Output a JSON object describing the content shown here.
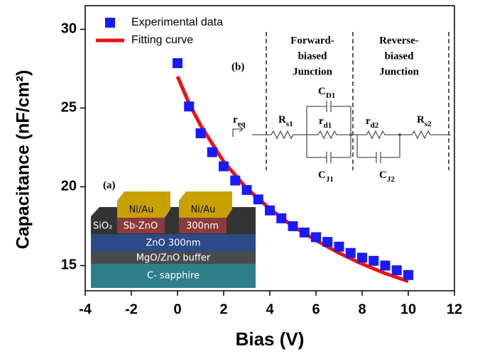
{
  "chart_data": {
    "type": "scatter",
    "x_label": "Bias (V)",
    "y_label": "Capacitance (nF/cm²)",
    "xlim": [
      -4,
      12
    ],
    "ylim": [
      13.4,
      31.5
    ],
    "xticks": [
      -4,
      -2,
      0,
      2,
      4,
      6,
      8,
      10,
      12
    ],
    "yticks": [
      15,
      20,
      25,
      30
    ],
    "legend": "top-left",
    "series": [
      {
        "name": "Experimental data",
        "kind": "marker",
        "color": "#1a1aff",
        "x": [
          0,
          0.5,
          1,
          1.5,
          2,
          2.5,
          3,
          3.5,
          4,
          4.5,
          5,
          5.5,
          6,
          6.5,
          7,
          7.5,
          8,
          8.5,
          9,
          9.5,
          10
        ],
        "values": [
          27.85,
          25.1,
          23.4,
          22.2,
          21.3,
          20.4,
          19.8,
          19.2,
          18.5,
          18.0,
          17.5,
          17.1,
          16.8,
          16.5,
          16.2,
          15.8,
          15.5,
          15.3,
          15.0,
          14.7,
          14.4
        ]
      },
      {
        "name": "Fitting curve",
        "kind": "line",
        "color": "#ee1111",
        "x": [
          0,
          0.5,
          1,
          2,
          3,
          4,
          5,
          6,
          7,
          8,
          9,
          10
        ],
        "values": [
          27.0,
          25.3,
          23.9,
          21.6,
          19.9,
          18.6,
          17.5,
          16.6,
          15.8,
          15.1,
          14.5,
          14.0
        ]
      }
    ],
    "inset_a": {
      "label": "(a)",
      "metal_1": "Ni/Au",
      "metal_2": "Ni/Au",
      "oxide": "SiO₂",
      "contact": "Sb-ZnO",
      "thick": "300nm",
      "zno": "ZnO  300nm",
      "buffer": "MgO/ZnO buffer",
      "substrate": "C- sapphire"
    },
    "inset_b": {
      "label": "(b)",
      "forward": [
        "Forward-",
        "biased",
        "Junction"
      ],
      "reverse": [
        "Reverse-",
        "biased",
        "Junction"
      ],
      "elements": [
        {
          "base": "r",
          "sub": "eq"
        },
        {
          "base": "R",
          "sub": "s1"
        },
        {
          "base": "C",
          "sub": "D1"
        },
        {
          "base": "r",
          "sub": "d1"
        },
        {
          "base": "C",
          "sub": "J1"
        },
        {
          "base": "r",
          "sub": "d2"
        },
        {
          "base": "C",
          "sub": "J2"
        },
        {
          "base": "R",
          "sub": "s2"
        }
      ]
    }
  }
}
